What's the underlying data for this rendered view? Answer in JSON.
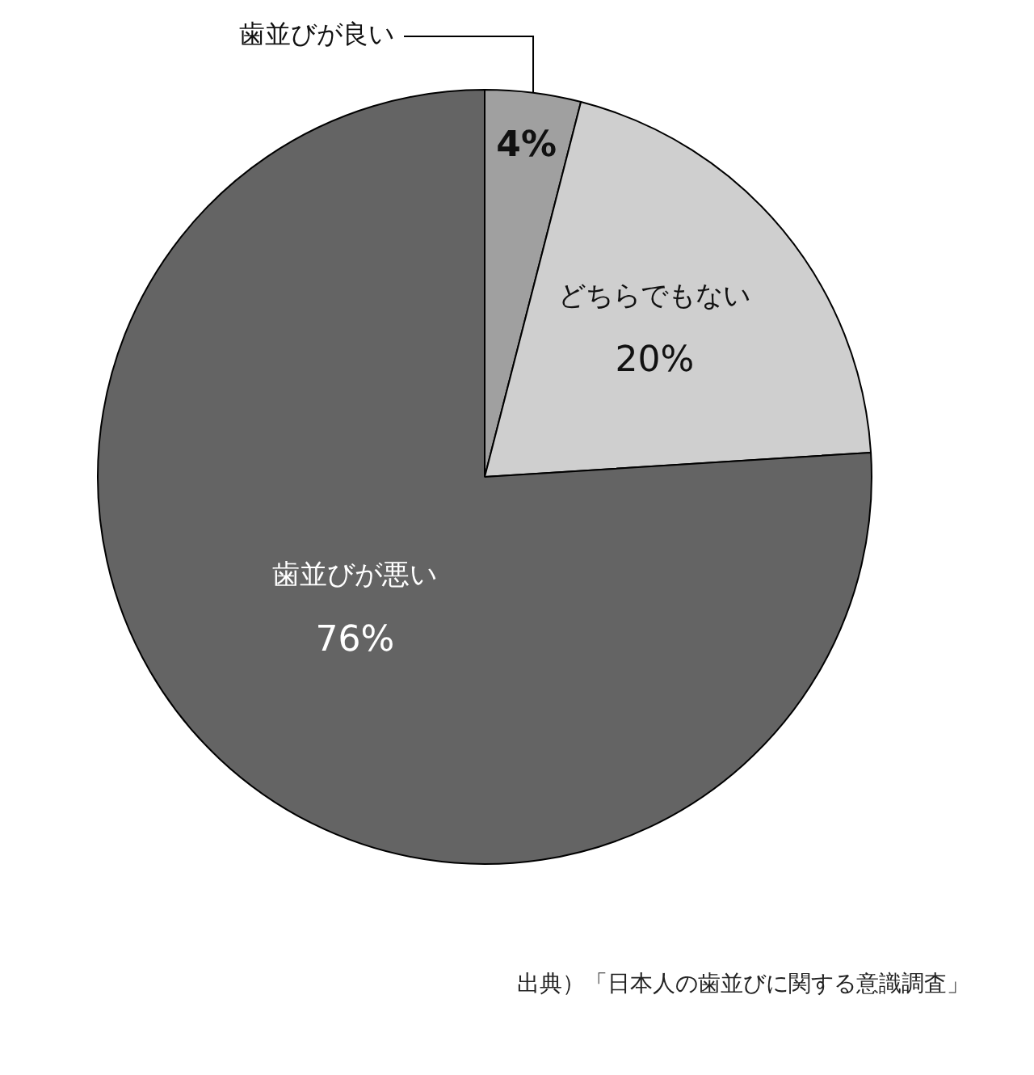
{
  "chart_data": {
    "type": "pie",
    "categories": [
      "歯並びが良い",
      "どちらでもない",
      "歯並びが悪い"
    ],
    "values": [
      4,
      20,
      76
    ],
    "colors": [
      "#a0a0a0",
      "#cfcfcf",
      "#646464"
    ],
    "value_labels": [
      "4%",
      "20%",
      "76%"
    ],
    "legend": false,
    "annotations": [
      "出典）「日本人の歯並びに関する意識調査」"
    ]
  }
}
